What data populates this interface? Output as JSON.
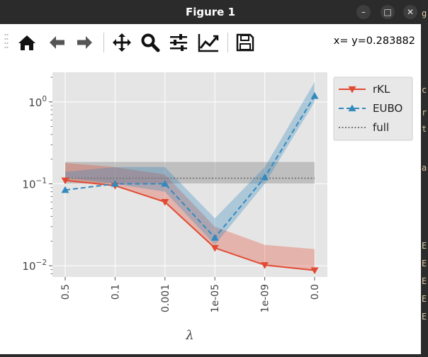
{
  "window": {
    "title": "Figure 1"
  },
  "titlebar_buttons": {
    "minimize": "–",
    "maximize": "□",
    "close": "✕"
  },
  "toolbar": {
    "tools": [
      "home-icon",
      "back-icon",
      "forward-icon",
      "pan-icon",
      "zoom-icon",
      "configure-subplots-icon",
      "edit-axis-icon",
      "save-icon"
    ],
    "coords_text": "x= y=0.283882"
  },
  "colors": {
    "rkl": "#e24a33",
    "eubo": "#348abd",
    "full": "#777777",
    "axes_bg": "#e5e5e5"
  },
  "chart_data": {
    "type": "line",
    "xlabel": "λ",
    "categories": [
      "0.5",
      "0.1",
      "0.001",
      "1e-05",
      "1e-09",
      "0.0"
    ],
    "yscale": "log",
    "ylim": [
      0.0073,
      2.3
    ],
    "yticks": [
      {
        "value": 1,
        "label": "10^0",
        "base": "10",
        "exp": "0"
      },
      {
        "value": 0.1,
        "label": "10^-1",
        "base": "10",
        "exp": "−1"
      },
      {
        "value": 0.01,
        "label": "10^-2",
        "base": "10",
        "exp": "−2"
      }
    ],
    "grid": true,
    "legend_position": "top-right",
    "series": [
      {
        "name": "rKL",
        "marker": "v",
        "linestyle": "solid",
        "values": [
          0.11,
          0.095,
          0.06,
          0.0165,
          0.0102,
          0.0088
        ],
        "band_low": [
          0.11,
          0.095,
          0.06,
          0.0165,
          0.0102,
          0.0088
        ],
        "band_high": [
          0.18,
          0.16,
          0.13,
          0.03,
          0.018,
          0.016
        ]
      },
      {
        "name": "EUBO",
        "marker": "^",
        "linestyle": "dashed",
        "values": [
          0.084,
          0.1,
          0.1,
          0.022,
          0.12,
          1.18
        ],
        "band_low": [
          0.12,
          0.1,
          0.08,
          0.018,
          0.1,
          1.0
        ],
        "band_high": [
          0.14,
          0.16,
          0.16,
          0.038,
          0.16,
          1.75
        ]
      },
      {
        "name": "full",
        "linestyle": "dotted",
        "constant": 0.117,
        "band_low": 0.1,
        "band_high": 0.185
      }
    ]
  }
}
